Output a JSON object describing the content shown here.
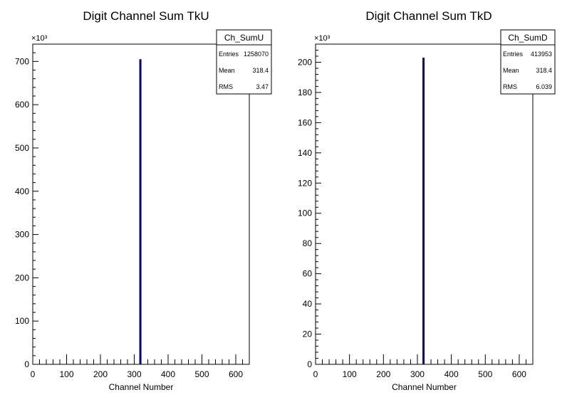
{
  "chart_data": [
    {
      "type": "bar",
      "title": "Digit Channel Sum TkU",
      "xlabel": "Channel Number",
      "ylabel": "",
      "xlim": [
        0,
        640
      ],
      "ylim": [
        0,
        740
      ],
      "y_multiplier_label": "×10³",
      "x_ticks": [
        "0",
        "100",
        "200",
        "300",
        "400",
        "500",
        "600"
      ],
      "y_ticks": [
        "0",
        "100",
        "200",
        "300",
        "400",
        "500",
        "600",
        "700"
      ],
      "bins": [
        {
          "x": 318,
          "y": 705
        }
      ],
      "stats_box": {
        "name": "Ch_SumU",
        "rows": [
          {
            "label": "Entries",
            "value": "1258070"
          },
          {
            "label": "Mean",
            "value": "318.4"
          },
          {
            "label": "RMS",
            "value": "3.47"
          }
        ]
      },
      "grid": false,
      "line_color": "#000080"
    },
    {
      "type": "bar",
      "title": "Digit Channel Sum TkD",
      "xlabel": "Channel Number",
      "ylabel": "",
      "xlim": [
        0,
        640
      ],
      "ylim": [
        0,
        212
      ],
      "y_multiplier_label": "×10³",
      "x_ticks": [
        "0",
        "100",
        "200",
        "300",
        "400",
        "500",
        "600"
      ],
      "y_ticks": [
        "0",
        "20",
        "40",
        "60",
        "80",
        "100",
        "120",
        "140",
        "160",
        "180",
        "200"
      ],
      "bins": [
        {
          "x": 318,
          "y": 203
        }
      ],
      "stats_box": {
        "name": "Ch_SumD",
        "rows": [
          {
            "label": "Entries",
            "value": "413953"
          },
          {
            "label": "Mean",
            "value": "318.4"
          },
          {
            "label": "RMS",
            "value": "6.039"
          }
        ]
      },
      "grid": false,
      "line_color": "#000080"
    }
  ]
}
